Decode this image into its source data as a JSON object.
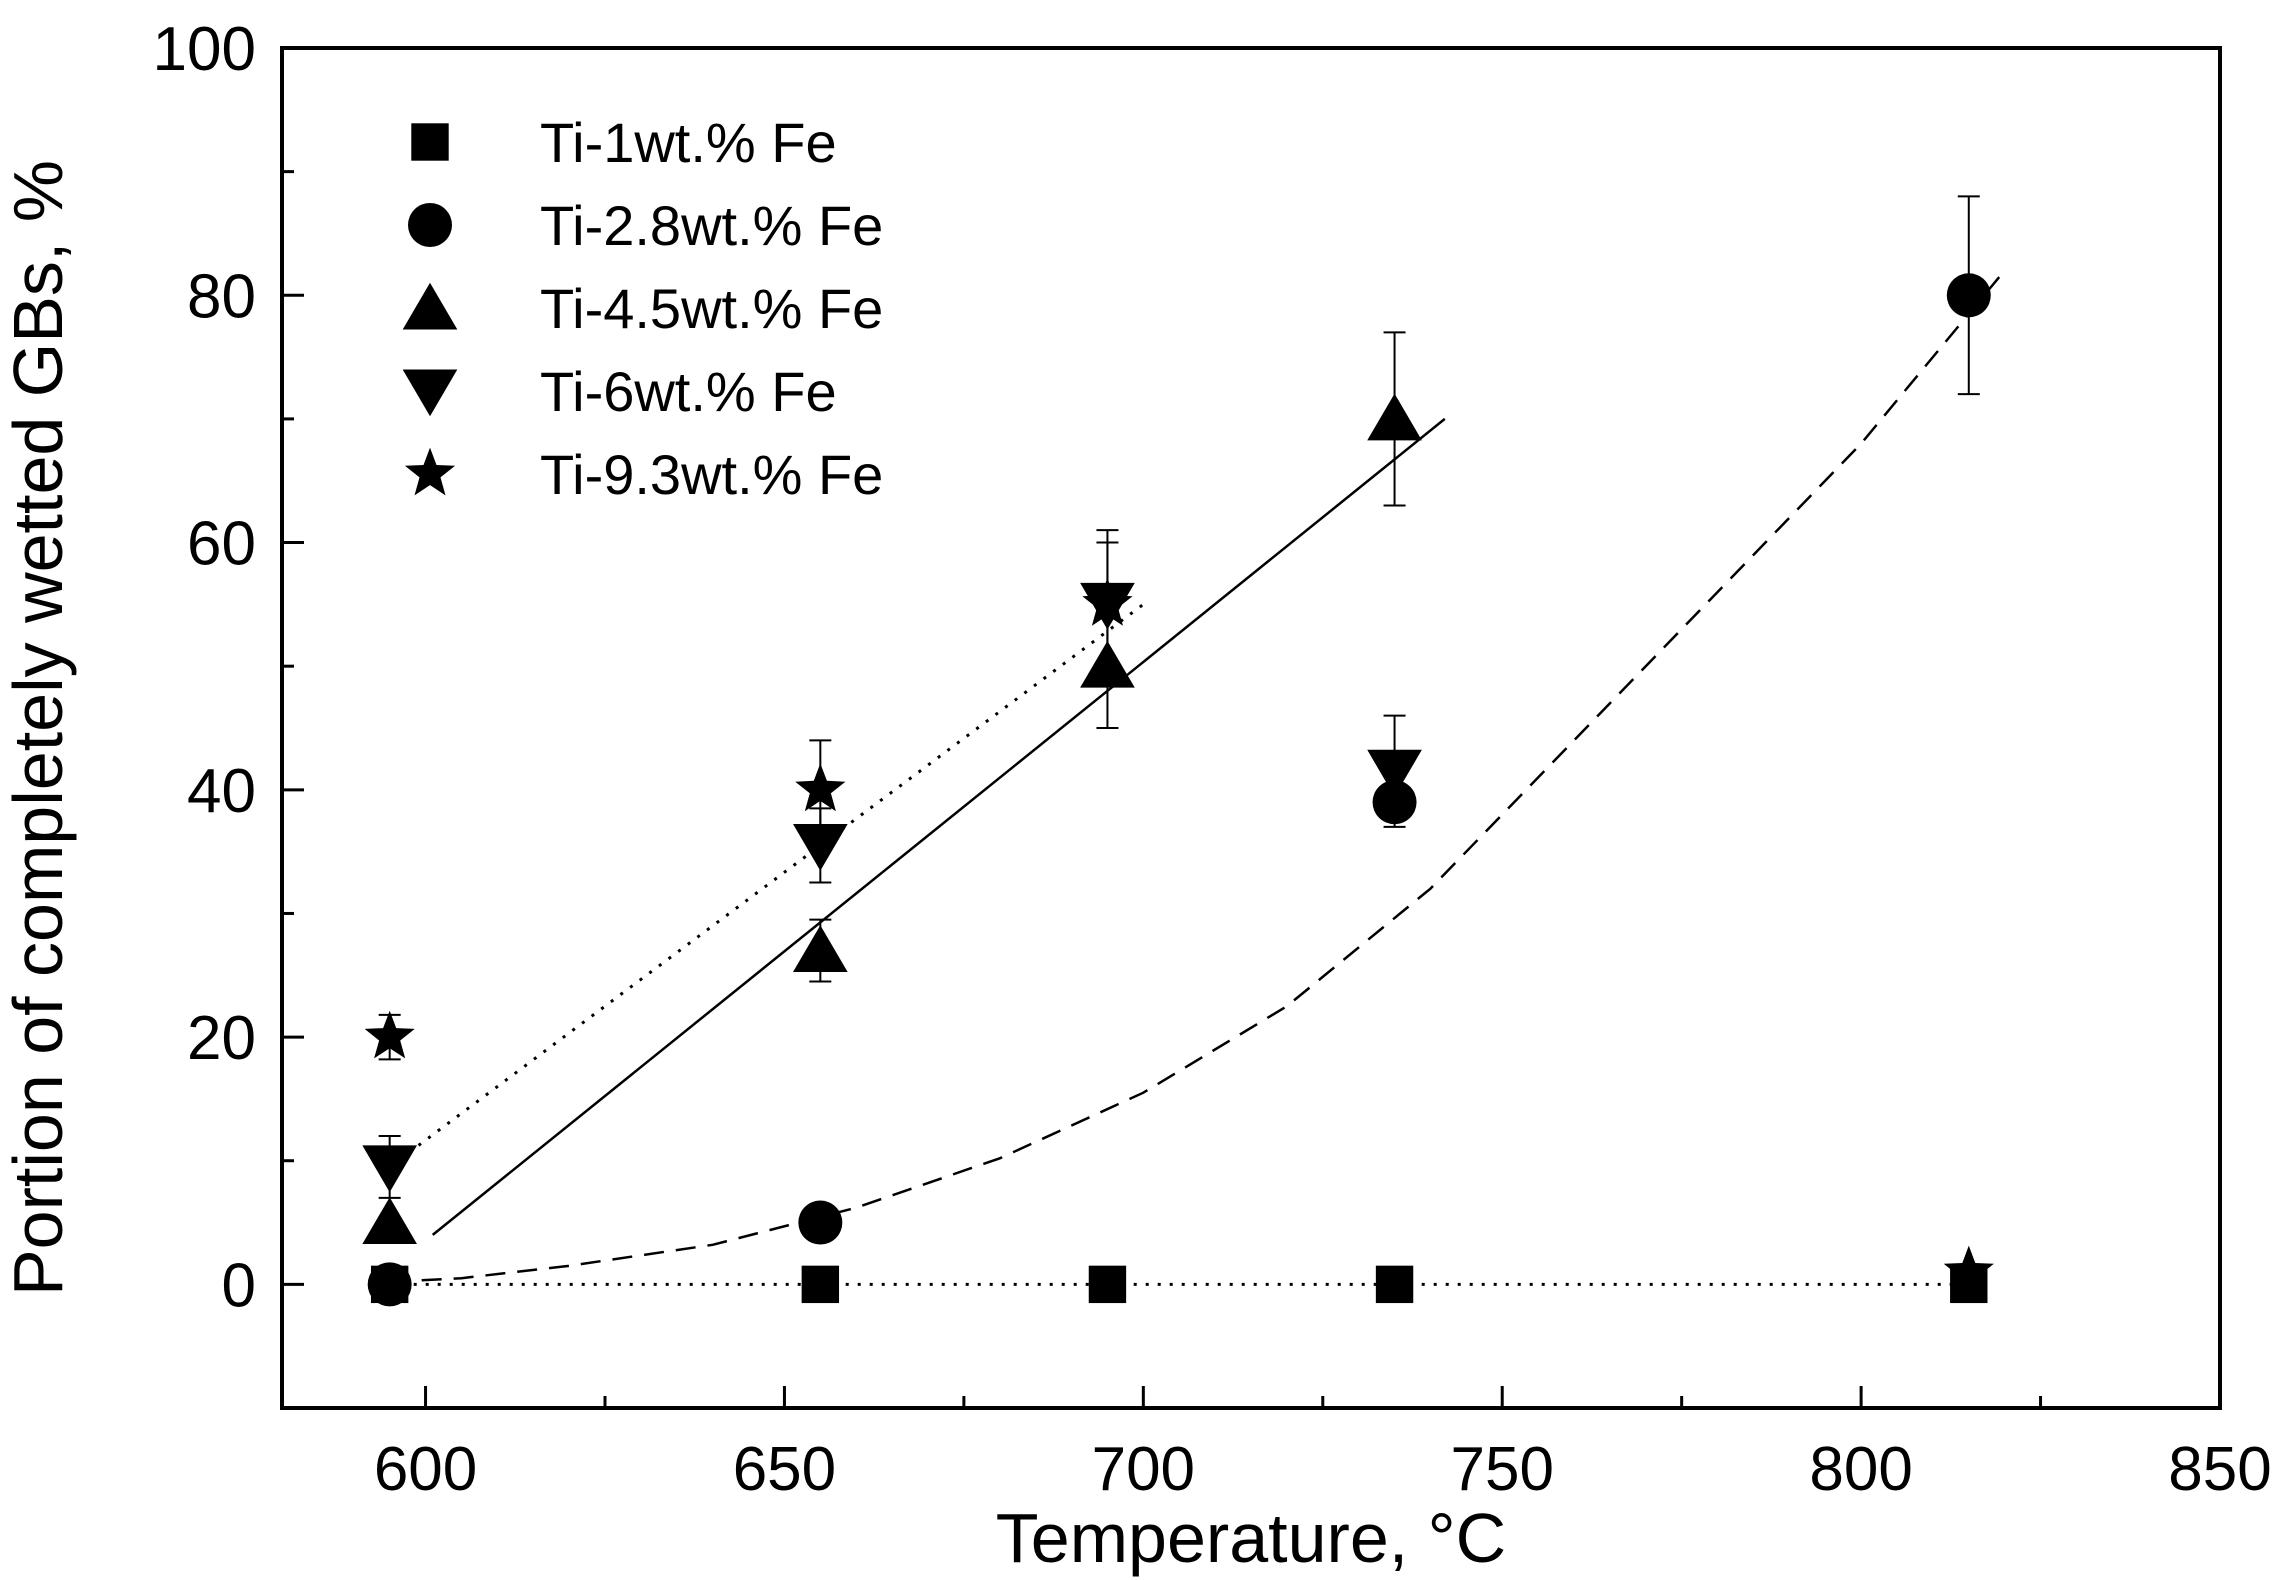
{
  "chart_data": {
    "type": "scatter",
    "title": "",
    "xlabel": "Temperature, °C",
    "ylabel": "Portion of completely wetted GBs, %",
    "xlim": [
      580,
      850
    ],
    "ylim": [
      -10,
      100
    ],
    "x_major_ticks": [
      600,
      650,
      700,
      750,
      800,
      850
    ],
    "x_tick_labels": [
      "600",
      "650",
      "700",
      "750",
      "800",
      "850"
    ],
    "x_minor_ticks": [
      625,
      675,
      725,
      775,
      825
    ],
    "y_major_ticks": [
      0,
      20,
      40,
      60,
      80,
      100
    ],
    "y_tick_labels": [
      "0",
      "20",
      "40",
      "60",
      "80",
      "100"
    ],
    "y_minor_ticks": [
      10,
      30,
      50,
      70,
      90
    ],
    "legend_position": "top-left",
    "series": [
      {
        "name": "Ti-1wt.% Fe",
        "marker": "square",
        "x": [
          595,
          655,
          695,
          735,
          815
        ],
        "y": [
          0,
          0,
          0,
          0,
          0
        ],
        "err": [
          0,
          0,
          0,
          0,
          0
        ]
      },
      {
        "name": "Ti-2.8wt.% Fe",
        "marker": "circle",
        "x": [
          595,
          655,
          735,
          815
        ],
        "y": [
          0,
          5,
          39,
          80
        ],
        "err": [
          0,
          0,
          0,
          8
        ]
      },
      {
        "name": "Ti-4.5wt.% Fe",
        "marker": "triangle-up",
        "x": [
          595,
          655,
          695,
          735
        ],
        "y": [
          5,
          27,
          50,
          70
        ],
        "err": [
          0,
          2.5,
          5,
          7
        ]
      },
      {
        "name": "Ti-6wt.% Fe",
        "marker": "triangle-down",
        "x": [
          595,
          655,
          695,
          735
        ],
        "y": [
          9.5,
          35.5,
          55,
          41.5
        ],
        "err": [
          2.5,
          3,
          6,
          4.5
        ]
      },
      {
        "name": "Ti-9.3wt.% Fe",
        "marker": "star",
        "x": [
          595,
          655,
          695,
          815
        ],
        "y": [
          20,
          40,
          55,
          1
        ],
        "err": [
          1.8,
          4,
          5,
          0
        ]
      }
    ],
    "fit_lines": [
      {
        "style": "solid",
        "x": [
          601,
          742
        ],
        "y": [
          4,
          70
        ]
      },
      {
        "style": "dotted",
        "x": [
          595,
          700
        ],
        "y": [
          9.5,
          55
        ]
      },
      {
        "style": "dotted",
        "x": [
          595,
          815
        ],
        "y": [
          0,
          0
        ]
      },
      {
        "style": "dashed",
        "x": [
          595,
          605,
          620,
          640,
          660,
          680,
          700,
          720,
          740,
          760,
          780,
          800,
          820
        ],
        "y": [
          0.2,
          0.5,
          1.5,
          3.2,
          6.2,
          10.2,
          15.5,
          22.5,
          32.0,
          44.0,
          56.0,
          68.0,
          82.0
        ]
      }
    ]
  }
}
